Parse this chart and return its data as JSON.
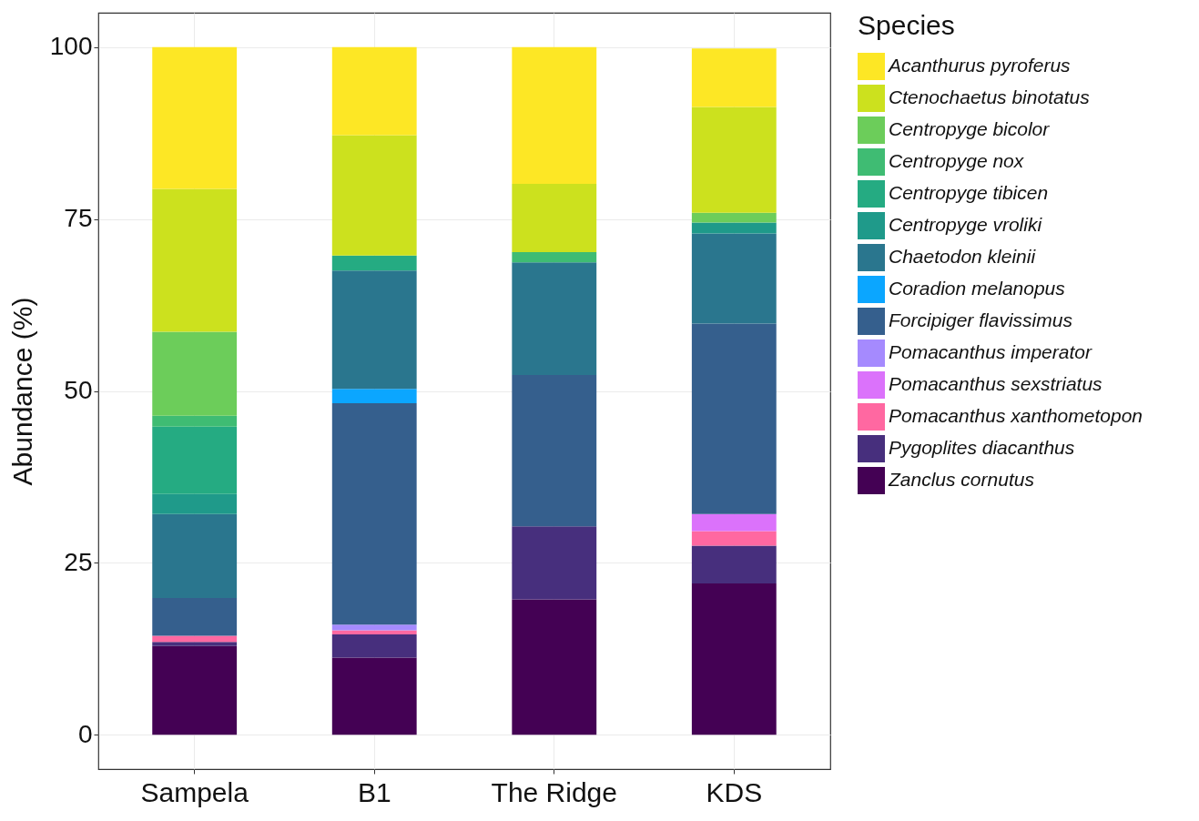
{
  "chart_data": {
    "type": "bar",
    "stacked": true,
    "ylabel": "Abundance (%)",
    "legend_title": "Species",
    "legend": "right",
    "grid": true,
    "categories": [
      "Sampela",
      "B1",
      "The Ridge",
      "KDS"
    ],
    "ylim": [
      -5,
      105
    ],
    "yticks": [
      0,
      25,
      50,
      75,
      100
    ],
    "series": [
      {
        "name": "Zanclus cornutus",
        "color": "#440154",
        "values": [
          12.9,
          11.2,
          19.7,
          22.0
        ]
      },
      {
        "name": "Pygoplites diacanthus",
        "color": "#472f7d",
        "values": [
          0.6,
          3.4,
          10.6,
          5.5
        ]
      },
      {
        "name": "Pomacanthus xanthometopon",
        "color": "#ff68a1",
        "values": [
          0.9,
          0.6,
          null,
          2.1
        ]
      },
      {
        "name": "Pomacanthus sexstriatus",
        "color": "#db72fb",
        "values": [
          null,
          null,
          null,
          2.5
        ]
      },
      {
        "name": "Pomacanthus imperator",
        "color": "#a58afe",
        "values": [
          null,
          0.8,
          null,
          null
        ]
      },
      {
        "name": "Forcipiger flavissimus",
        "color": "#355f8d",
        "values": [
          5.5,
          32.2,
          22.0,
          27.7
        ]
      },
      {
        "name": "Coradion melanopus",
        "color": "#0ba6ff",
        "values": [
          null,
          2.1,
          null,
          null
        ]
      },
      {
        "name": "Chaetodon kleinii",
        "color": "#2a768e",
        "values": [
          12.2,
          17.2,
          16.4,
          13.1
        ]
      },
      {
        "name": "Centropyge vroliki",
        "color": "#1f9a8a",
        "values": [
          2.9,
          null,
          null,
          1.6
        ]
      },
      {
        "name": "Centropyge tibicen",
        "color": "#25ab82",
        "values": [
          9.8,
          2.2,
          null,
          null
        ]
      },
      {
        "name": "Centropyge nox",
        "color": "#3fbc73",
        "values": [
          1.6,
          null,
          1.5,
          null
        ]
      },
      {
        "name": "Centropyge bicolor",
        "color": "#6ccd5a",
        "values": [
          12.2,
          null,
          null,
          1.4
        ]
      },
      {
        "name": "Ctenochaetus binotatus",
        "color": "#cce11e",
        "values": [
          20.8,
          17.5,
          9.9,
          15.4
        ]
      },
      {
        "name": "Acanthurus pyroferus",
        "color": "#fde725",
        "values": [
          20.6,
          12.8,
          19.9,
          8.5
        ]
      }
    ]
  }
}
